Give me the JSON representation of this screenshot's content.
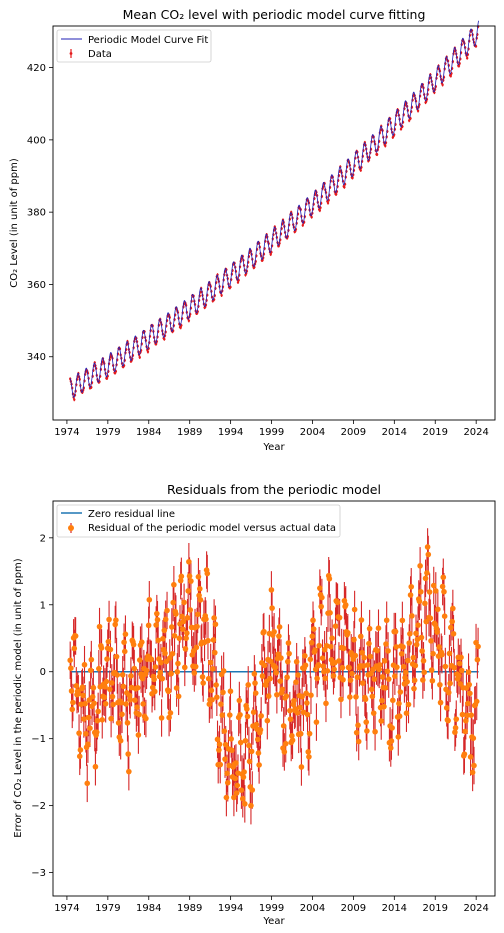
{
  "chart_data": [
    {
      "type": "line",
      "title": "Mean CO₂ level with periodic model curve fitting",
      "xlabel": "Year",
      "ylabel": "CO₂ Level (in unit of ppm)",
      "xlim": [
        1972.3,
        2026.3
      ],
      "ylim": [
        322.5,
        431.5
      ],
      "xticks": [
        1974,
        1979,
        1984,
        1989,
        1994,
        1999,
        2004,
        2009,
        2014,
        2019,
        2024
      ],
      "yticks": [
        340,
        360,
        380,
        400,
        420
      ],
      "legend_location": "upper left",
      "legend": [
        "Periodic Model Curve Fit",
        "Data"
      ],
      "grid": false,
      "series": [
        {
          "name": "Periodic Model Curve Fit",
          "kind": "line",
          "color": "#1f1fb4",
          "model": {
            "base_1974": 330.6,
            "slope_per_year": 1.35,
            "curvature_per_year2": 0.0125,
            "seasonal_amplitude": 3.0
          }
        },
        {
          "name": "Data",
          "kind": "errorbar",
          "color": "#e41a1c",
          "x_range": [
            1974.4,
            2024.3
          ],
          "points_per_year": 12
        }
      ]
    },
    {
      "type": "scatter",
      "title": "Residuals from the periodic model",
      "xlabel": "Year",
      "ylabel": "Error of CO₂ Level in the periodic model (in unit of ppm)",
      "xlim": [
        1972.3,
        2026.3
      ],
      "ylim": [
        -3.35,
        2.55
      ],
      "xticks": [
        1974,
        1979,
        1984,
        1989,
        1994,
        1999,
        2004,
        2009,
        2014,
        2019,
        2024
      ],
      "yticks": [
        -3,
        -2,
        -1,
        0,
        1,
        2
      ],
      "legend_location": "upper left",
      "legend": [
        "Zero residual line",
        "Residual of the periodic model versus actual data"
      ],
      "grid": false,
      "series": [
        {
          "name": "Zero residual line",
          "kind": "line",
          "color": "#1f77b4",
          "y": 0,
          "x_range": [
            1974.4,
            2024.3
          ]
        },
        {
          "name": "Residual of the periodic model versus actual data",
          "kind": "errorbar",
          "marker_color": "#ff7f0e",
          "error_color": "#d62728",
          "x_range": [
            1974.4,
            2024.3
          ],
          "points_per_year": 12,
          "trend_anchors": [
            [
              1974.4,
              0.2
            ],
            [
              1976,
              -0.9
            ],
            [
              1979,
              0.0
            ],
            [
              1982,
              -0.5
            ],
            [
              1984,
              0.3
            ],
            [
              1986,
              0.2
            ],
            [
              1989,
              0.9
            ],
            [
              1991,
              0.7
            ],
            [
              1993,
              -0.9
            ],
            [
              1995,
              -1.5
            ],
            [
              1997,
              -0.8
            ],
            [
              1998.7,
              0.4
            ],
            [
              2001,
              -0.6
            ],
            [
              2003,
              -0.5
            ],
            [
              2005,
              0.5
            ],
            [
              2008,
              0.4
            ],
            [
              2010,
              -0.2
            ],
            [
              2012,
              0.1
            ],
            [
              2014,
              -0.4
            ],
            [
              2016,
              0.3
            ],
            [
              2018,
              0.9
            ],
            [
              2020,
              0.4
            ],
            [
              2022,
              -0.2
            ],
            [
              2023.5,
              -0.8
            ],
            [
              2024.3,
              -0.3
            ]
          ],
          "error_half_width": 0.28
        }
      ]
    }
  ]
}
